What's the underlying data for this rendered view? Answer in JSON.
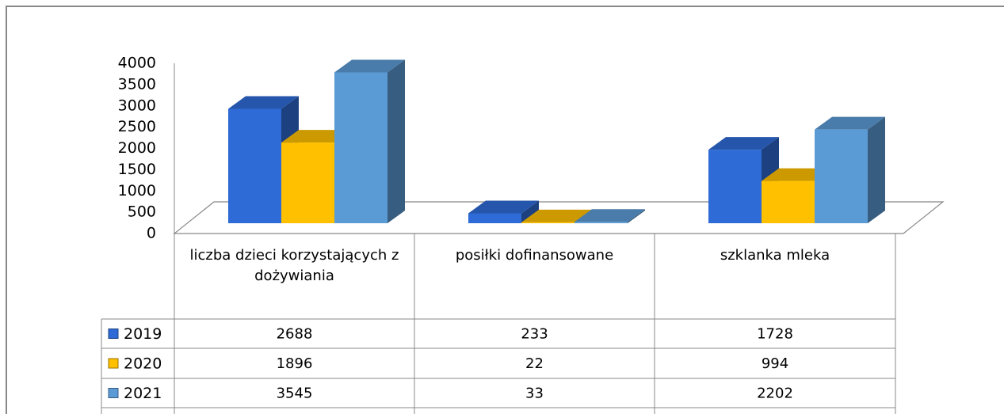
{
  "chart_data": {
    "type": "bar",
    "categories": [
      "liczba dzieci korzystających z dożywiania",
      "posiłki dofinansowane",
      "szklanka mleka"
    ],
    "series": [
      {
        "name": "2019",
        "color": "#2e6bd6",
        "values": [
          2688,
          233,
          1728
        ]
      },
      {
        "name": "2020",
        "color": "#ffc000",
        "values": [
          1896,
          22,
          994
        ]
      },
      {
        "name": "2021",
        "color": "#5b9bd5",
        "values": [
          3545,
          33,
          2202
        ]
      }
    ],
    "ylim": [
      0,
      4000
    ],
    "yticks": [
      0,
      500,
      1000,
      1500,
      2000,
      2500,
      3000,
      3500,
      4000
    ]
  }
}
